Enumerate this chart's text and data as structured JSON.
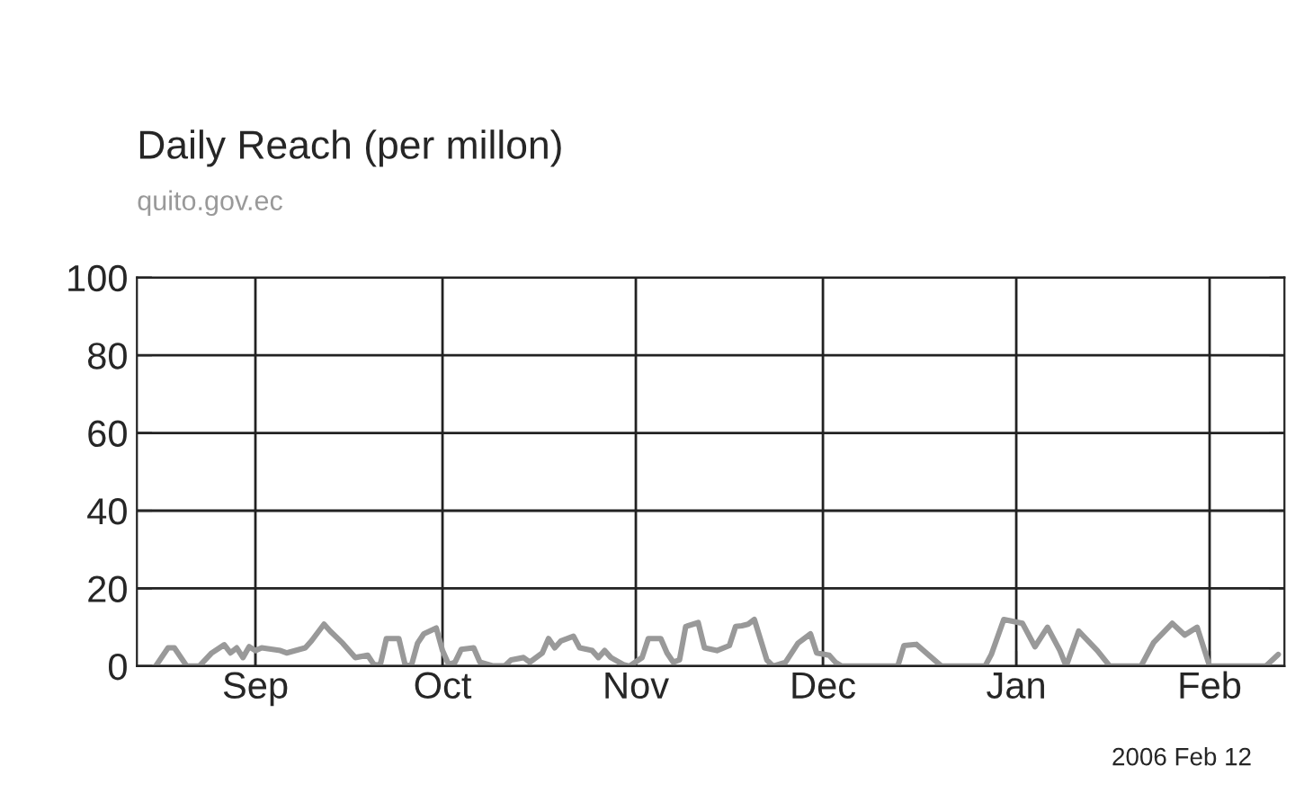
{
  "chart_data": {
    "type": "line",
    "title": "Daily Reach (per millon)",
    "subtitle": "quito.gov.ec",
    "annotations": [
      "2006 Feb 12"
    ],
    "x": [
      "2005-08-16",
      "2005-08-18",
      "2005-08-19",
      "2005-08-21",
      "2005-08-23",
      "2005-08-25",
      "2005-08-27",
      "2005-08-28",
      "2005-08-29",
      "2005-08-30",
      "2005-08-31",
      "2005-09-01",
      "2005-09-02",
      "2005-09-05",
      "2005-09-06",
      "2005-09-09",
      "2005-09-10",
      "2005-09-12",
      "2005-09-13",
      "2005-09-15",
      "2005-09-17",
      "2005-09-19",
      "2005-09-20",
      "2005-09-21",
      "2005-09-22",
      "2005-09-24",
      "2005-09-25",
      "2005-09-26",
      "2005-09-27",
      "2005-09-28",
      "2005-09-30",
      "2005-10-01",
      "2005-10-02",
      "2005-10-03",
      "2005-10-04",
      "2005-10-06",
      "2005-10-07",
      "2005-10-09",
      "2005-10-11",
      "2005-10-12",
      "2005-10-14",
      "2005-10-15",
      "2005-10-17",
      "2005-10-18",
      "2005-10-19",
      "2005-10-20",
      "2005-10-22",
      "2005-10-23",
      "2005-10-25",
      "2005-10-26",
      "2005-10-27",
      "2005-10-28",
      "2005-10-30",
      "2005-10-31",
      "2005-11-02",
      "2005-11-03",
      "2005-11-05",
      "2005-11-06",
      "2005-11-07",
      "2005-11-08",
      "2005-11-09",
      "2005-11-11",
      "2005-11-12",
      "2005-11-14",
      "2005-11-16",
      "2005-11-17",
      "2005-11-18",
      "2005-11-19",
      "2005-11-20",
      "2005-11-22",
      "2005-11-23",
      "2005-11-25",
      "2005-11-27",
      "2005-11-29",
      "2005-11-30",
      "2005-12-02",
      "2005-12-03",
      "2005-12-04",
      "2005-12-13",
      "2005-12-14",
      "2005-12-16",
      "2005-12-20",
      "2005-12-27",
      "2005-12-28",
      "2005-12-30",
      "2006-01-02",
      "2006-01-04",
      "2006-01-06",
      "2006-01-08",
      "2006-01-09",
      "2006-01-11",
      "2006-01-14",
      "2006-01-16",
      "2006-01-21",
      "2006-01-23",
      "2006-01-26",
      "2006-01-28",
      "2006-01-30",
      "2006-02-01",
      "2006-02-10",
      "2006-02-12"
    ],
    "series": [
      {
        "color": "#999999",
        "values": [
          0,
          4.7,
          4.7,
          0,
          0,
          3.4,
          5.5,
          3.4,
          4.7,
          2.2,
          5,
          4,
          4.7,
          4,
          3.4,
          4.7,
          6.5,
          10.8,
          9,
          5.9,
          2.2,
          2.8,
          0.4,
          0.2,
          7.1,
          7.1,
          0.4,
          0.1,
          5.9,
          8.3,
          9.8,
          4,
          0.4,
          1,
          4.3,
          4.7,
          1,
          0.1,
          0.1,
          1.6,
          2.2,
          1,
          3.4,
          7.1,
          4.7,
          6.5,
          7.7,
          4.7,
          4,
          2.2,
          4,
          2.2,
          0.4,
          0,
          2.2,
          7.1,
          7.1,
          3.4,
          1,
          1.6,
          10.2,
          11.2,
          4.7,
          4,
          5.3,
          10.2,
          10.4,
          10.8,
          12,
          1.6,
          0,
          1,
          5.9,
          8.3,
          3.4,
          2.8,
          1,
          0,
          0,
          5.3,
          5.6,
          0,
          0,
          3,
          12,
          11,
          5,
          10,
          4,
          0,
          9,
          4,
          0,
          0,
          6,
          11,
          8,
          10,
          0,
          0,
          3
        ]
      }
    ],
    "xlim": [
      "2005-08-13",
      "2006-02-13"
    ],
    "xticks": [
      {
        "value": "2005-09-01",
        "label": "Sep"
      },
      {
        "value": "2005-10-01",
        "label": "Oct"
      },
      {
        "value": "2005-11-01",
        "label": "Nov"
      },
      {
        "value": "2005-12-01",
        "label": "Dec"
      },
      {
        "value": "2006-01-01",
        "label": "Jan"
      },
      {
        "value": "2006-02-01",
        "label": "Feb"
      }
    ],
    "ylim": [
      0,
      100
    ],
    "yticks": [
      0,
      20,
      40,
      60,
      80,
      100
    ],
    "grid": true,
    "line_style": "solid",
    "marker": "none"
  }
}
